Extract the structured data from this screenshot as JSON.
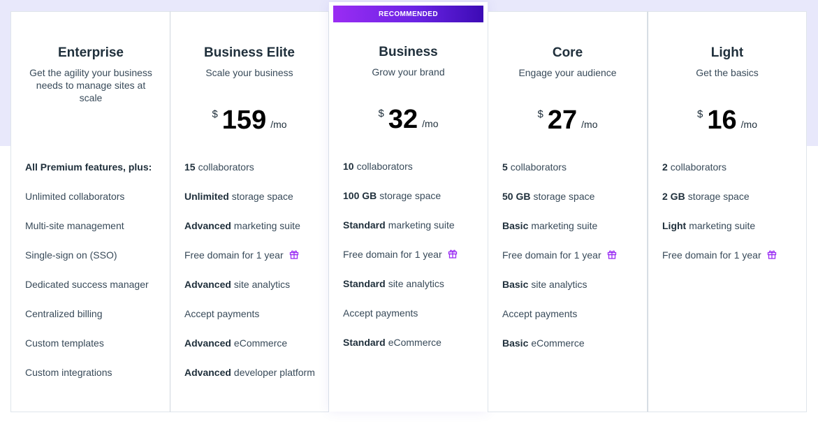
{
  "colors": {
    "accent": "#7b2ff0",
    "background_band": "#e8e8fb",
    "card_border": "#dfe5eb",
    "text_dark": "#20303c",
    "text_body": "#384a59",
    "gift_icon": "#9a2cf3"
  },
  "ribbon": {
    "label": "RECOMMENDED"
  },
  "plans": [
    {
      "name": "Enterprise",
      "subtitle": "Get the agility your business needs to manage sites at scale",
      "features": [
        {
          "text": "All Premium features, plus:"
        },
        {
          "text": "Unlimited collaborators"
        },
        {
          "text": "Multi-site management"
        },
        {
          "text": "Single-sign on (SSO)"
        },
        {
          "text": "Dedicated success manager"
        },
        {
          "text": "Centralized billing"
        },
        {
          "text": "Custom templates"
        },
        {
          "text": "Custom integrations"
        }
      ]
    },
    {
      "name": "Business Elite",
      "subtitle": "Scale your business",
      "price": {
        "currency": "$",
        "amount": "159",
        "period": "/mo"
      },
      "features": [
        {
          "bold": "15",
          "text": "collaborators"
        },
        {
          "bold": "Unlimited",
          "text": "storage space"
        },
        {
          "bold": "Advanced",
          "text": "marketing suite"
        },
        {
          "text": "Free domain for 1 year",
          "icon": "gift-icon"
        },
        {
          "bold": "Advanced",
          "text": "site analytics"
        },
        {
          "text": "Accept payments"
        },
        {
          "bold": "Advanced",
          "text": "eCommerce"
        },
        {
          "bold": "Advanced",
          "text": "developer platform"
        }
      ]
    },
    {
      "name": "Business",
      "subtitle": "Grow your brand",
      "price": {
        "currency": "$",
        "amount": "32",
        "period": "/mo"
      },
      "features": [
        {
          "bold": "10",
          "text": "collaborators"
        },
        {
          "bold": "100 GB",
          "text": "storage space"
        },
        {
          "bold": "Standard",
          "text": "marketing suite"
        },
        {
          "text": "Free domain for 1 year",
          "icon": "gift-icon"
        },
        {
          "bold": "Standard",
          "text": "site analytics"
        },
        {
          "text": "Accept payments"
        },
        {
          "bold": "Standard",
          "text": "eCommerce"
        }
      ]
    },
    {
      "name": "Core",
      "subtitle": "Engage your audience",
      "price": {
        "currency": "$",
        "amount": "27",
        "period": "/mo"
      },
      "features": [
        {
          "bold": "5",
          "text": "collaborators"
        },
        {
          "bold": "50 GB",
          "text": "storage space"
        },
        {
          "bold": "Basic",
          "text": "marketing suite"
        },
        {
          "text": "Free domain for 1 year",
          "icon": "gift-icon"
        },
        {
          "bold": "Basic",
          "text": "site analytics"
        },
        {
          "text": "Accept payments"
        },
        {
          "bold": "Basic",
          "text": "eCommerce"
        }
      ]
    },
    {
      "name": "Light",
      "subtitle": "Get the basics",
      "price": {
        "currency": "$",
        "amount": "16",
        "period": "/mo"
      },
      "features": [
        {
          "bold": "2",
          "text": "collaborators"
        },
        {
          "bold": "2 GB",
          "text": "storage space"
        },
        {
          "bold": "Light",
          "text": "marketing suite"
        },
        {
          "text": "Free domain for 1 year",
          "icon": "gift-icon"
        }
      ]
    }
  ]
}
